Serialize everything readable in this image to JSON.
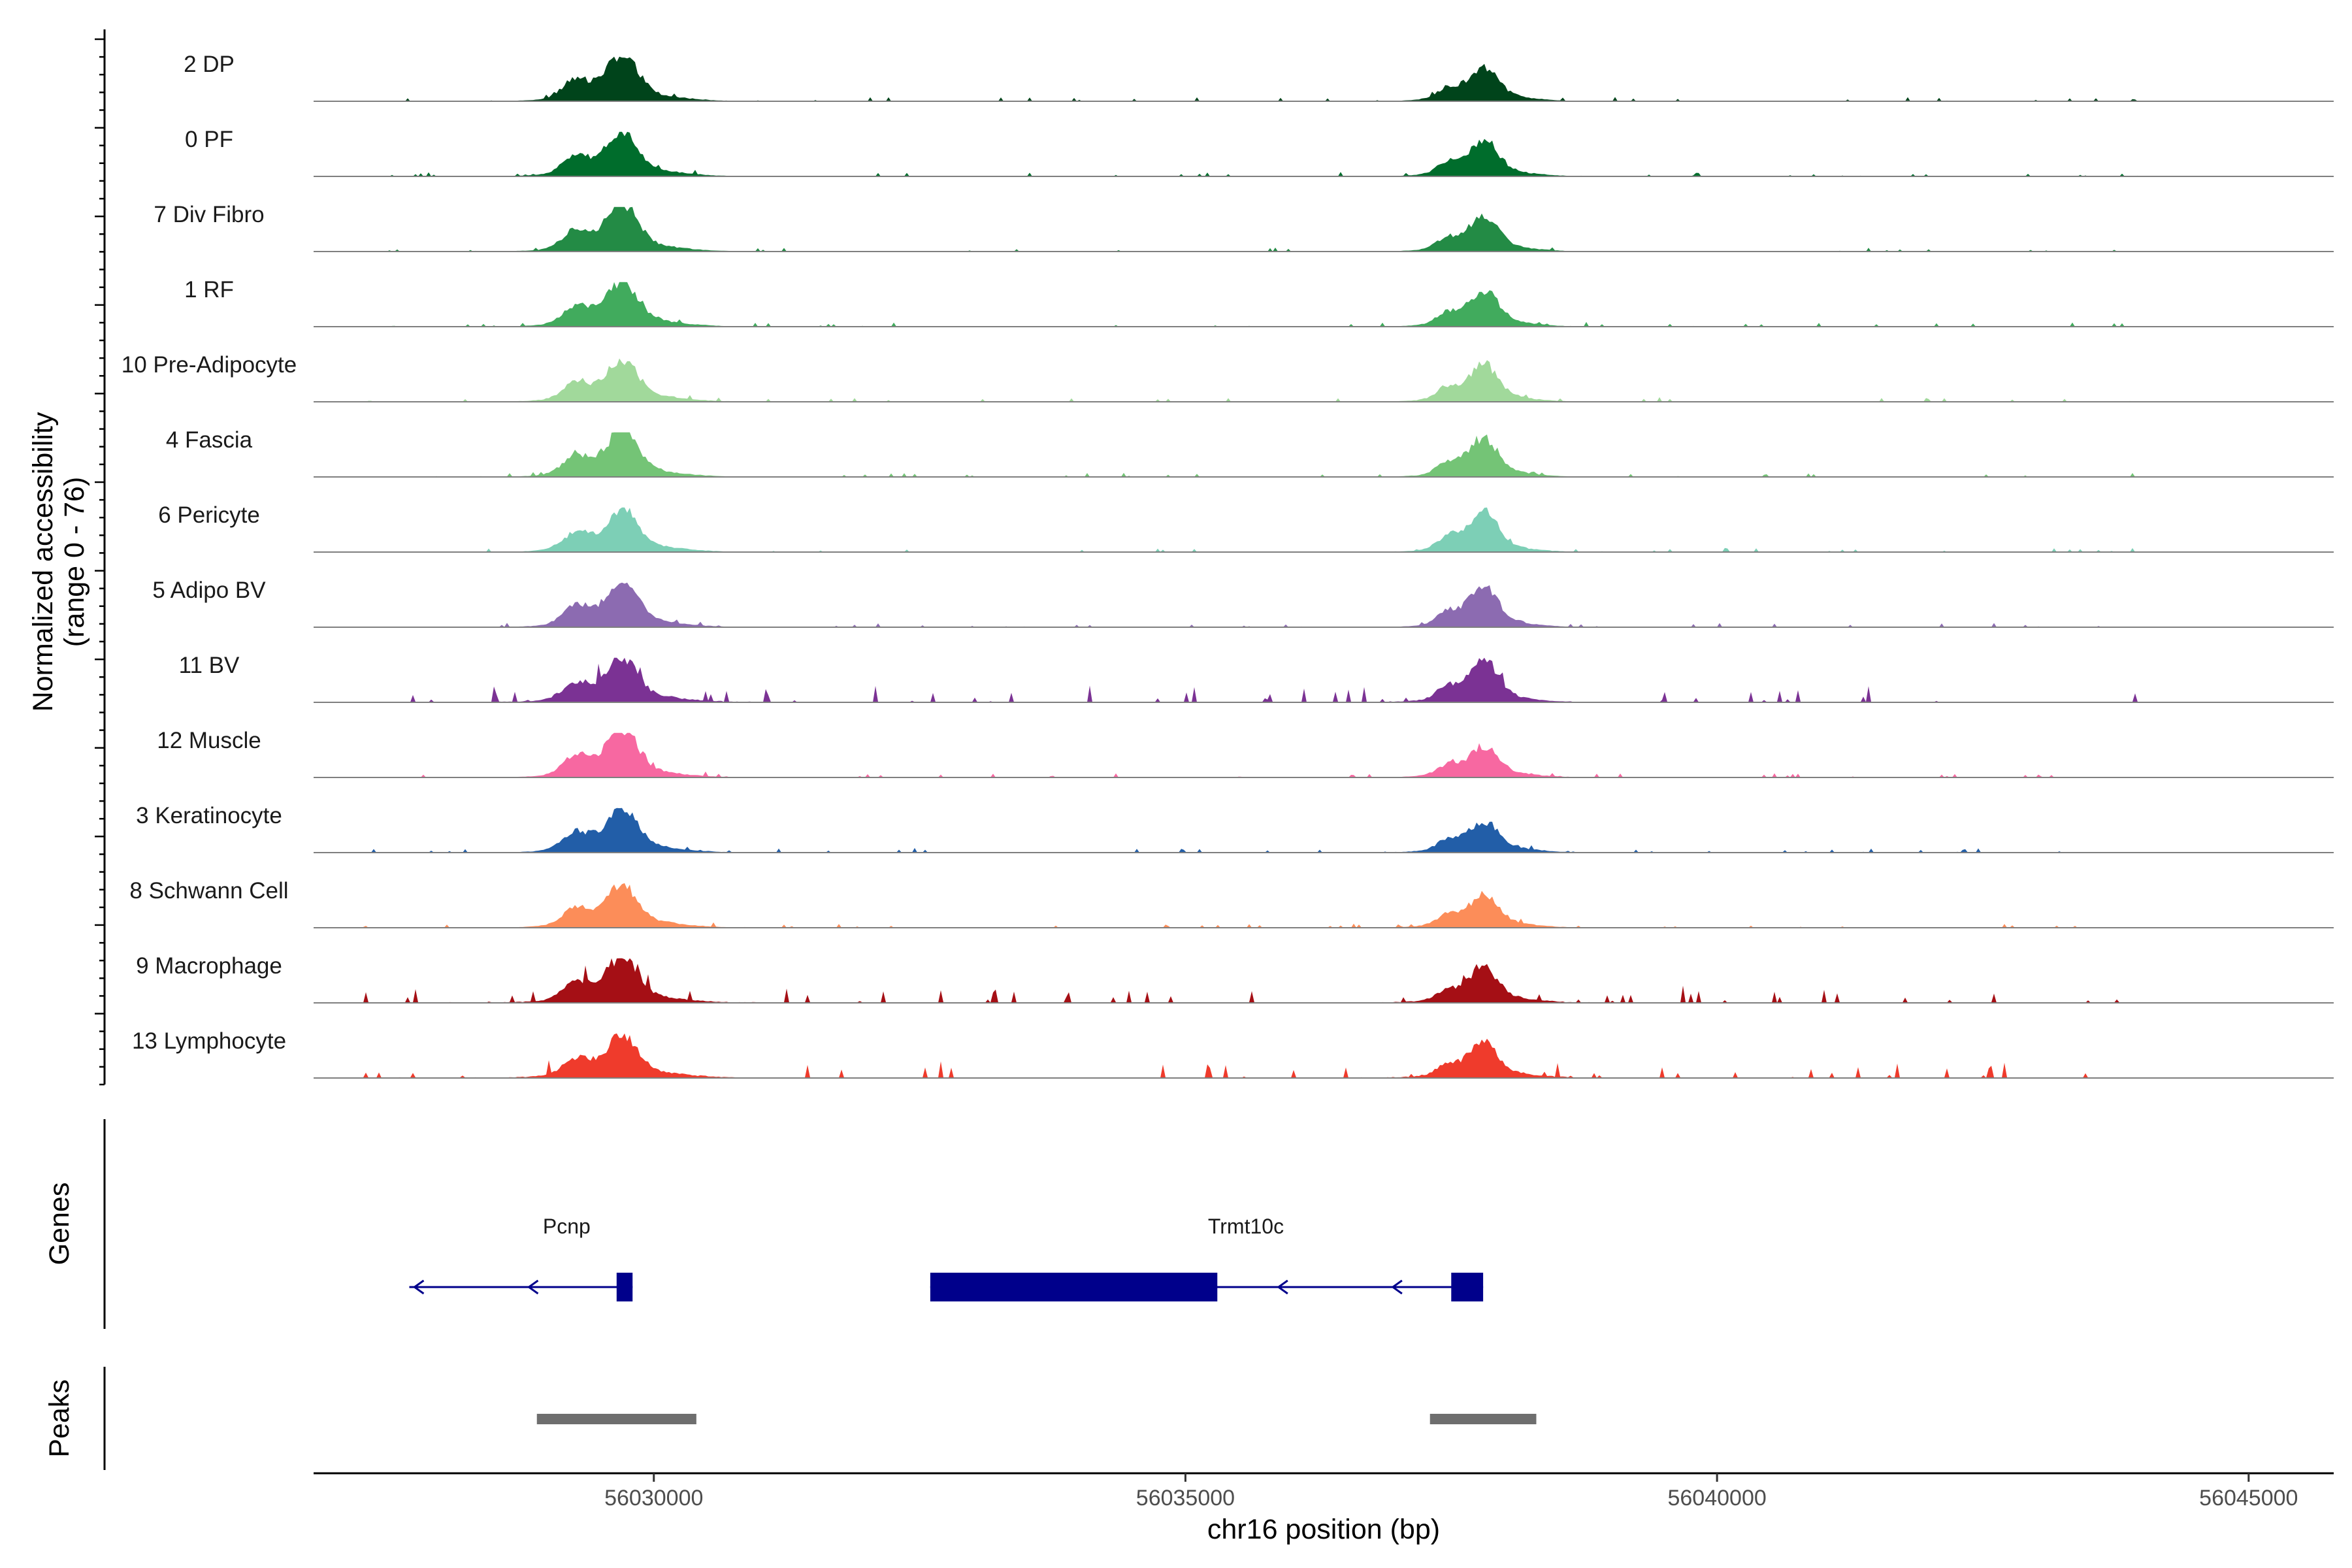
{
  "chart_data": {
    "type": "area",
    "title": "",
    "ylabel_line1": "Normalized accessibility",
    "ylabel_line2": "(range 0 - 76)",
    "xlabel": "chr16 position (bp)",
    "xlim": [
      56026800,
      56045800
    ],
    "x_ticks": [
      56030000,
      56035000,
      56040000,
      56045000
    ],
    "x_tick_labels": [
      "56030000",
      "56035000",
      "56040000",
      "56045000"
    ],
    "tracks": [
      {
        "name": "2 DP",
        "color": "#00441b"
      },
      {
        "name": "0 PF",
        "color": "#006d2c"
      },
      {
        "name": "7 Div Fibro",
        "color": "#238b45"
      },
      {
        "name": "1 RF",
        "color": "#41ab5d"
      },
      {
        "name": "10 Pre-Adipocyte",
        "color": "#a1d99b"
      },
      {
        "name": "4 Fascia",
        "color": "#74c476"
      },
      {
        "name": "6 Pericyte",
        "color": "#7dcfb6"
      },
      {
        "name": "5 Adipo BV",
        "color": "#8c6bb1"
      },
      {
        "name": "11 BV",
        "color": "#7b3294"
      },
      {
        "name": "12 Muscle",
        "color": "#f768a1"
      },
      {
        "name": "3 Keratinocyte",
        "color": "#225ea8"
      },
      {
        "name": "8 Schwann Cell",
        "color": "#fc8d59"
      },
      {
        "name": "9 Macrophage",
        "color": "#a50f15"
      },
      {
        "name": "13 Lymphocyte",
        "color": "#ef3b2c"
      }
    ],
    "peak_centers_bp": [
      56029700,
      56037800
    ],
    "genes_label": "Genes",
    "genes": [
      {
        "name": "Pcnp",
        "start": 56027700,
        "end": 56029800,
        "strand": "-",
        "exons": [
          [
            56029650,
            56029800
          ]
        ]
      },
      {
        "name": "Trmt10c",
        "start": 56032600,
        "end": 56037800,
        "strand": "-",
        "exons": [
          [
            56032600,
            56035300
          ],
          [
            56037500,
            56037800
          ]
        ]
      }
    ],
    "gene_color": "#00008b",
    "peaks_label": "Peaks",
    "peaks": [
      [
        56028900,
        56030400
      ],
      [
        56037300,
        56038300
      ]
    ],
    "peak_color": "#6e6e6e"
  }
}
